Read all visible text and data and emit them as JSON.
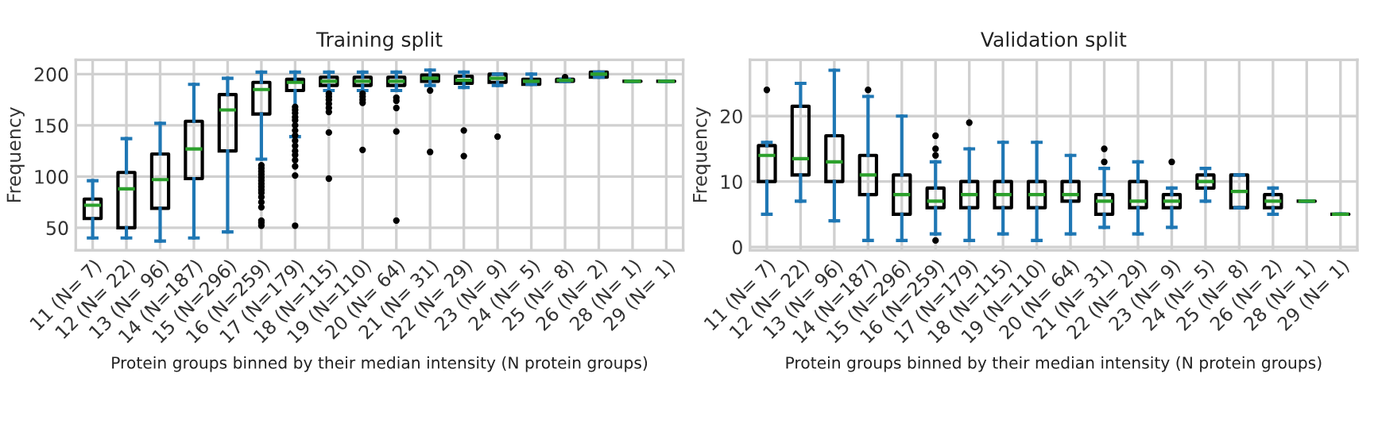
{
  "chart_data": [
    {
      "type": "box",
      "title": "Training split",
      "xlabel": "Protein groups binned by their median intensity (N protein groups)",
      "ylabel": "Frequency",
      "categories": [
        "11 (N= 7)",
        "12 (N= 22)",
        "13 (N= 96)",
        "14 (N=187)",
        "15 (N=296)",
        "16 (N=259)",
        "17 (N=179)",
        "18 (N=115)",
        "19 (N=110)",
        "20 (N= 64)",
        "21 (N= 31)",
        "22 (N= 29)",
        "23 (N= 9)",
        "24 (N= 5)",
        "25 (N= 8)",
        "26 (N= 2)",
        "28 (N= 1)",
        "29 (N= 1)"
      ],
      "boxes": [
        {
          "low": 40,
          "q1": 59,
          "median": 72,
          "q3": 78,
          "high": 96
        },
        {
          "low": 40,
          "q1": 50,
          "median": 88,
          "q3": 104,
          "high": 137
        },
        {
          "low": 37,
          "q1": 69,
          "median": 97,
          "q3": 122,
          "high": 152
        },
        {
          "low": 40,
          "q1": 98,
          "median": 127,
          "q3": 154,
          "high": 190
        },
        {
          "low": 46,
          "q1": 125,
          "median": 165,
          "q3": 180,
          "high": 196
        },
        {
          "low": 117,
          "q1": 161,
          "median": 185,
          "q3": 192,
          "high": 202,
          "outliers": [
            111,
            108,
            105,
            102,
            99,
            96,
            93,
            90,
            87,
            84,
            80,
            75,
            70,
            57,
            55,
            52
          ]
        },
        {
          "low": 139,
          "q1": 184,
          "median": 192,
          "q3": 195,
          "high": 202,
          "outliers": [
            168,
            165,
            162,
            158,
            155,
            150,
            145,
            140,
            135,
            130,
            125,
            121,
            116,
            110,
            101,
            52
          ]
        },
        {
          "low": 184,
          "q1": 189,
          "median": 193,
          "q3": 197,
          "high": 202,
          "outliers": [
            181,
            178,
            175,
            171,
            167,
            163,
            143,
            98
          ]
        },
        {
          "low": 184,
          "q1": 189,
          "median": 193,
          "q3": 197,
          "high": 202,
          "outliers": [
            181,
            178,
            175,
            172,
            126
          ]
        },
        {
          "low": 184,
          "q1": 189,
          "median": 193,
          "q3": 197,
          "high": 202,
          "outliers": [
            177,
            174,
            167,
            144,
            57
          ]
        },
        {
          "low": 189,
          "q1": 193,
          "median": 196,
          "q3": 199,
          "high": 204,
          "outliers": [
            184,
            124
          ]
        },
        {
          "low": 187,
          "q1": 191,
          "median": 194,
          "q3": 198,
          "high": 202,
          "outliers": [
            145,
            120
          ]
        },
        {
          "low": 189,
          "q1": 192,
          "median": 196,
          "q3": 200,
          "high": 200,
          "outliers": [
            139
          ]
        },
        {
          "low": 190,
          "q1": 190,
          "median": 193,
          "q3": 195,
          "high": 200
        },
        {
          "low": 193,
          "q1": 193,
          "median": 194,
          "q3": 195,
          "high": 195,
          "outliers": [
            197
          ]
        },
        {
          "low": 197,
          "q1": 197,
          "median": 200,
          "q3": 202,
          "high": 202
        },
        {
          "low": 193,
          "q1": 193,
          "median": 193,
          "q3": 193,
          "high": 193
        },
        {
          "low": 193,
          "q1": 193,
          "median": 193,
          "q3": 193,
          "high": 193
        }
      ],
      "ylim": [
        28,
        214
      ],
      "yticks": [
        50,
        100,
        150,
        200
      ],
      "grid": true
    },
    {
      "type": "box",
      "title": "Validation split",
      "xlabel": "Protein groups binned by their median intensity (N protein groups)",
      "ylabel": "Frequency",
      "categories": [
        "11 (N= 7)",
        "12 (N= 22)",
        "13 (N= 96)",
        "14 (N=187)",
        "15 (N=296)",
        "16 (N=259)",
        "17 (N=179)",
        "18 (N=115)",
        "19 (N=110)",
        "20 (N= 64)",
        "21 (N= 31)",
        "22 (N= 29)",
        "23 (N= 9)",
        "24 (N= 5)",
        "25 (N= 8)",
        "26 (N= 2)",
        "28 (N= 1)",
        "29 (N= 1)"
      ],
      "boxes": [
        {
          "low": 5,
          "q1": 10,
          "median": 14,
          "q3": 15.5,
          "high": 16,
          "outliers": [
            24
          ]
        },
        {
          "low": 7,
          "q1": 11,
          "median": 13.5,
          "q3": 21.5,
          "high": 25
        },
        {
          "low": 4,
          "q1": 10,
          "median": 13,
          "q3": 17,
          "high": 27
        },
        {
          "low": 1,
          "q1": 8,
          "median": 11,
          "q3": 14,
          "high": 23,
          "outliers": [
            24
          ]
        },
        {
          "low": 1,
          "q1": 5,
          "median": 8,
          "q3": 11,
          "high": 20
        },
        {
          "low": 2,
          "q1": 6,
          "median": 7,
          "q3": 9,
          "high": 13,
          "outliers": [
            17,
            15,
            14,
            1
          ]
        },
        {
          "low": 1,
          "q1": 6,
          "median": 8,
          "q3": 10,
          "high": 15,
          "outliers": [
            19
          ]
        },
        {
          "low": 2,
          "q1": 6,
          "median": 8,
          "q3": 10,
          "high": 16
        },
        {
          "low": 1,
          "q1": 6,
          "median": 8,
          "q3": 10,
          "high": 16
        },
        {
          "low": 2,
          "q1": 7,
          "median": 8,
          "q3": 10,
          "high": 14
        },
        {
          "low": 3,
          "q1": 5,
          "median": 7,
          "q3": 8,
          "high": 12,
          "outliers": [
            15,
            13
          ]
        },
        {
          "low": 2,
          "q1": 6,
          "median": 7,
          "q3": 10,
          "high": 13
        },
        {
          "low": 3,
          "q1": 6,
          "median": 7,
          "q3": 8,
          "high": 9,
          "outliers": [
            13
          ]
        },
        {
          "low": 7,
          "q1": 9,
          "median": 10,
          "q3": 11,
          "high": 12
        },
        {
          "low": 6,
          "q1": 6,
          "median": 8.5,
          "q3": 11,
          "high": 11
        },
        {
          "low": 5,
          "q1": 6,
          "median": 7,
          "q3": 8,
          "high": 9
        },
        {
          "low": 7,
          "q1": 7,
          "median": 7,
          "q3": 7,
          "high": 7
        },
        {
          "low": 5,
          "q1": 5,
          "median": 5,
          "q3": 5,
          "high": 5
        }
      ],
      "ylim": [
        -0.5,
        28.6
      ],
      "yticks": [
        0,
        10,
        20
      ],
      "grid": true
    }
  ]
}
